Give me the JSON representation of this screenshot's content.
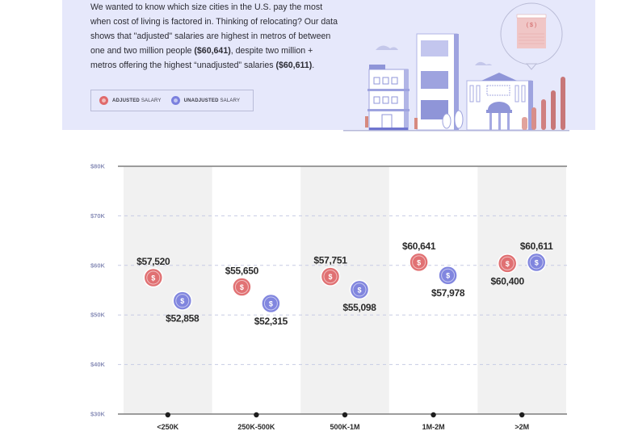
{
  "intro": {
    "line1": "We wanted to know which size cities in the U.S. pay the most",
    "line2": "when cost of living is factored in. Thinking of relocating? Our data",
    "line3": "shows that \"adjusted\" salaries are highest in metros of between",
    "line4a": "one and two million people ",
    "line4b": "($60,641)",
    "line4c": ", despite two million +",
    "line5a": "metros offering the highest “unadjusted” salaries ",
    "line5b": "($60,611)",
    "line5c": "."
  },
  "legend": {
    "adjusted_bold": "ADJUSTED",
    "adjusted_rest": " SALARY",
    "unadjusted_bold": "UNADJUSTED",
    "unadjusted_rest": " SALARY"
  },
  "colors": {
    "adjusted": "#e06a6c",
    "unadjusted": "#7b80de",
    "panel": "#e6e8fb",
    "column_shade": "#f1f1f1"
  },
  "chart_data": {
    "type": "scatter",
    "title": "",
    "xlabel": "",
    "ylabel": "",
    "categories": [
      "<250K",
      "250K-500K",
      "500K-1M",
      "1M-2M",
      ">2M"
    ],
    "ylim": [
      30000,
      80000
    ],
    "yticks": [
      30000,
      40000,
      50000,
      60000,
      70000,
      80000
    ],
    "ytick_labels": [
      "$30K",
      "$40K",
      "$50K",
      "$60K",
      "$70K",
      "$80K"
    ],
    "grid": true,
    "legend": "top-left",
    "series": [
      {
        "name": "Adjusted Salary",
        "values": [
          57520,
          55650,
          57751,
          60641,
          60400
        ],
        "labels": [
          "$57,520",
          "$55,650",
          "$57,751",
          "$60,641",
          "$60,400"
        ]
      },
      {
        "name": "Unadjusted Salary",
        "values": [
          52858,
          52315,
          55098,
          57978,
          60611
        ],
        "labels": [
          "$52,858",
          "$52,315",
          "$55,098",
          "$57,978",
          "$60,611"
        ]
      }
    ]
  }
}
